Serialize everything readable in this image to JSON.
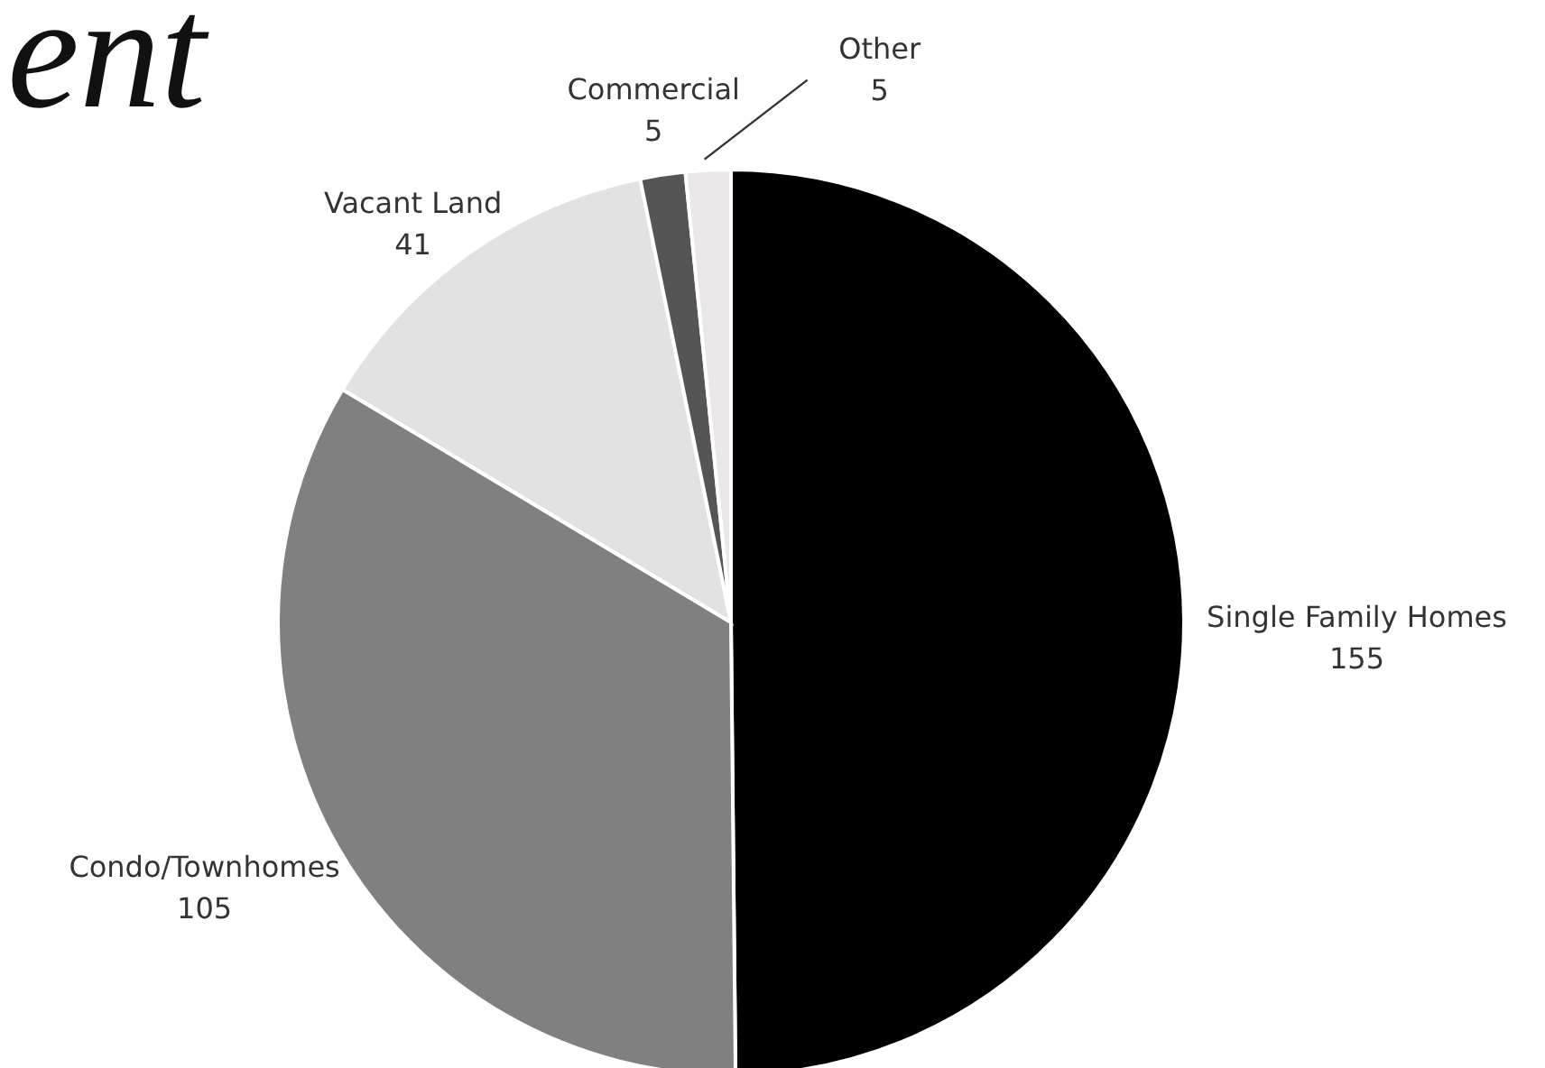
{
  "chart_data": {
    "type": "pie",
    "title": "ent",
    "categories": [
      "Single Family Homes",
      "Condo/Townhomes",
      "Vacant Land",
      "Commercial",
      "Other"
    ],
    "values": [
      155,
      105,
      41,
      5,
      5
    ],
    "colors": [
      "#000000",
      "#808080",
      "#e2e2e2",
      "#555555",
      "#ebe6e8"
    ],
    "data_labels": true,
    "legend": false
  }
}
